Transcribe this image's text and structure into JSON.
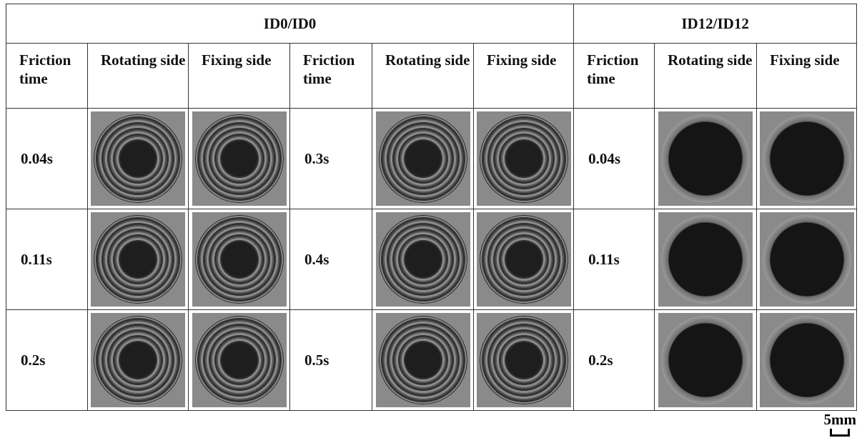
{
  "table": {
    "group_headers": [
      "ID0/ID0",
      "ID12/ID12"
    ],
    "column_headers": [
      "Friction time",
      "Rotating side",
      "Fixing side",
      "Friction time",
      "Rotating side",
      "Fixing side",
      "Friction time",
      "Rotating side",
      "Fixing side"
    ],
    "rows": [
      [
        "0.04s",
        "0.3s",
        "0.04s"
      ],
      [
        "0.11s",
        "0.4s",
        "0.11s"
      ],
      [
        "0.2s",
        "0.5s",
        "0.2s"
      ]
    ]
  },
  "scale_bar": "5mm"
}
